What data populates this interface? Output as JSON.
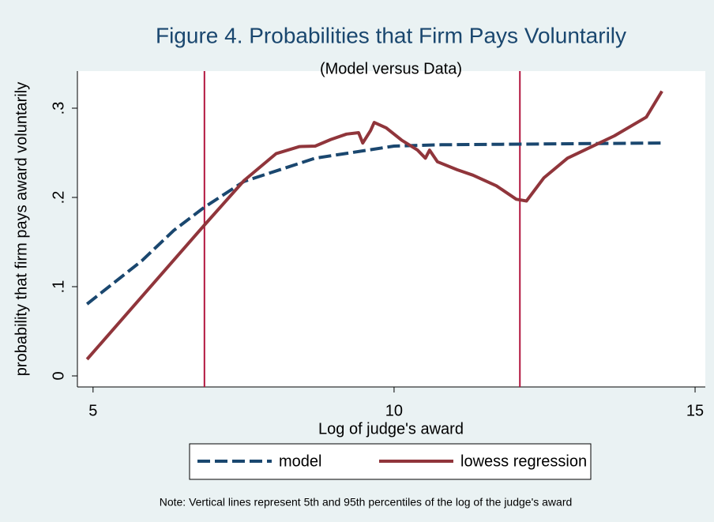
{
  "chart_data": {
    "type": "line",
    "title": "Figure 4. Probabilities that Firm Pays Voluntarily",
    "subtitle": "(Model versus Data)",
    "x_label": "Log of judge's award",
    "y_label": "probability that firm pays award voluntarily",
    "note": "Note: Vertical lines represent 5th and 95th percentiles of the log of the judge's award",
    "xlim": [
      4.74,
      15.17
    ],
    "ylim": [
      -0.0124,
      0.3416
    ],
    "xticks": [
      5,
      10,
      15
    ],
    "yticks": [
      0,
      {
        "value": 0.1,
        "label": ".1"
      },
      {
        "value": 0.2,
        "label": ".2"
      },
      {
        "value": 0.3,
        "label": ".3"
      }
    ],
    "vlines": {
      "color": "#b2163e",
      "x": [
        6.85,
        12.09
      ]
    },
    "series": [
      {
        "name": "model",
        "color": "#1a476f",
        "dash": true,
        "x": [
          4.9,
          5.81,
          6.34,
          6.85,
          7.51,
          8.69,
          10.0,
          10.79,
          14.45
        ],
        "values": [
          0.0805,
          0.129,
          0.163,
          0.189,
          0.218,
          0.244,
          0.2575,
          0.259,
          0.261
        ]
      },
      {
        "name": "lowess regression",
        "color": "#90353b",
        "dash": false,
        "x": [
          4.9,
          6.85,
          7.51,
          8.04,
          8.43,
          8.69,
          8.95,
          9.21,
          9.41,
          9.48,
          9.61,
          9.67,
          9.87,
          10.13,
          10.39,
          10.52,
          10.59,
          10.72,
          11.05,
          11.31,
          11.7,
          12.03,
          12.2,
          12.49,
          12.88,
          13.66,
          14.19,
          14.45
        ],
        "values": [
          0.0186,
          0.169,
          0.219,
          0.249,
          0.257,
          0.2575,
          0.265,
          0.271,
          0.2726,
          0.261,
          0.275,
          0.284,
          0.278,
          0.264,
          0.253,
          0.244,
          0.253,
          0.24,
          0.231,
          0.225,
          0.213,
          0.198,
          0.196,
          0.222,
          0.244,
          0.269,
          0.29,
          0.319
        ]
      }
    ]
  }
}
